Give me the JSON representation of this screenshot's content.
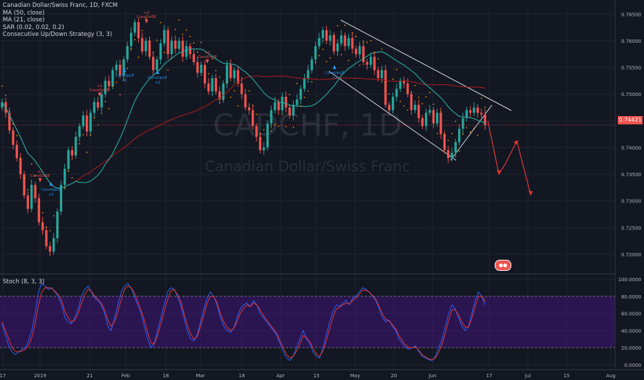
{
  "legend": {
    "symbol": "Canadian Dollar/Swiss Franc, 1D, FXCM",
    "studies": [
      "MA (50, close)",
      "MA (21, close)",
      "SAR (0.02, 0.02, 0.2)",
      "Consecutive Up/Down Strategy (3, 3)"
    ]
  },
  "watermark": {
    "ticker": "CADCHF, 1D",
    "name": "Canadian Dollar/Swiss Franc"
  },
  "current_price": "0.74421",
  "stoch_label": "Stoch (8, 3, 3)",
  "signals": {
    "long_label": "ConsUpLE",
    "short_label": "ConsDnSE",
    "qty": "+2"
  },
  "colors": {
    "background": "#131722",
    "up": "#26a69a",
    "down": "#ef5350",
    "ma50": "#b71c1c",
    "ma21": "#26a69a",
    "sar": "#ff9800",
    "stoch_k": "#2962ff",
    "stoch_d": "#e53935",
    "stoch_band": "#4a148c"
  },
  "chart_data": [
    {
      "type": "candlestick",
      "title": "Canadian Dollar/Swiss Franc, 1D, FXCM",
      "x_tick_labels": [
        "17",
        "2019",
        "21",
        "Feb",
        "18",
        "Mar",
        "18",
        "Apr",
        "15",
        "May",
        "20",
        "Jun",
        "17",
        "Jul",
        "15",
        "Aug"
      ],
      "y_tick_labels": [
        "0.76500",
        "0.76000",
        "0.75500",
        "0.75000",
        "0.74500",
        "0.74000",
        "0.73500",
        "0.73000",
        "0.72500",
        "0.72000"
      ],
      "ylim": [
        0.7165,
        0.7666
      ],
      "close": [
        0.7485,
        0.7465,
        0.7432,
        0.7405,
        0.738,
        0.735,
        0.731,
        0.7285,
        0.733,
        0.7305,
        0.726,
        0.7245,
        0.7215,
        0.7205,
        0.723,
        0.728,
        0.733,
        0.736,
        0.7395,
        0.7385,
        0.742,
        0.744,
        0.746,
        0.743,
        0.7465,
        0.7485,
        0.7475,
        0.75,
        0.7525,
        0.7515,
        0.7545,
        0.7555,
        0.7535,
        0.7565,
        0.759,
        0.7615,
        0.7635,
        0.7605,
        0.758,
        0.76,
        0.757,
        0.7545,
        0.7565,
        0.7595,
        0.762,
        0.7575,
        0.76,
        0.7585,
        0.76,
        0.757,
        0.759,
        0.7575,
        0.756,
        0.754,
        0.7555,
        0.752,
        0.7505,
        0.753,
        0.7505,
        0.749,
        0.752,
        0.7555,
        0.753,
        0.7545,
        0.752,
        0.75,
        0.7475,
        0.747,
        0.744,
        0.742,
        0.7395,
        0.74,
        0.7445,
        0.747,
        0.7485,
        0.747,
        0.7495,
        0.7475,
        0.746,
        0.748,
        0.749,
        0.751,
        0.753,
        0.7545,
        0.7565,
        0.759,
        0.7605,
        0.762,
        0.76,
        0.761,
        0.758,
        0.7595,
        0.761,
        0.759,
        0.7605,
        0.7585,
        0.7575,
        0.759,
        0.756,
        0.7555,
        0.757,
        0.7545,
        0.753,
        0.7545,
        0.748,
        0.747,
        0.7495,
        0.751,
        0.7525,
        0.752,
        0.75,
        0.747,
        0.748,
        0.7455,
        0.744,
        0.7465,
        0.747,
        0.7445,
        0.7465,
        0.7425,
        0.7395,
        0.738,
        0.739,
        0.741,
        0.7435,
        0.7455,
        0.747,
        0.7465,
        0.7475,
        0.7465,
        0.7462,
        0.7442
      ],
      "annotations": [
        "ConsUpLE",
        "ConsDnSE",
        "+2"
      ]
    },
    {
      "type": "line",
      "title": "Stoch (8, 3, 3)",
      "y_tick_labels": [
        "100.0000",
        "80.0000",
        "60.0000",
        "40.0000",
        "20.0000",
        "0.0000"
      ],
      "ylim": [
        0,
        100
      ],
      "band": [
        20,
        80
      ],
      "series": [
        {
          "values": [
            48,
            35,
            22,
            15,
            12,
            15,
            18,
            20,
            28,
            40,
            60,
            85,
            95,
            92,
            88,
            90,
            85,
            80,
            70,
            55,
            50,
            48,
            55,
            65,
            80,
            88,
            92,
            85,
            78,
            75,
            70,
            60,
            45,
            40,
            55,
            70,
            85,
            92,
            95,
            90,
            80,
            70,
            60,
            45,
            30,
            20,
            25,
            40,
            55,
            70,
            85,
            90,
            88,
            80,
            70,
            55,
            40,
            30,
            28,
            35,
            50,
            65,
            78,
            85,
            80,
            70,
            55,
            45,
            40,
            38,
            42,
            55,
            65,
            70,
            72,
            68,
            75,
            70,
            60,
            55,
            50,
            45,
            40,
            35,
            25,
            15,
            8,
            5,
            10,
            20,
            30,
            40,
            30,
            25,
            15,
            10,
            8,
            20,
            35,
            50,
            62,
            70,
            68,
            72,
            75,
            70,
            78,
            80,
            85,
            90,
            88,
            85,
            80,
            75,
            65,
            55,
            50,
            52,
            45,
            40,
            30,
            25,
            20,
            18,
            20,
            22,
            15,
            10,
            8,
            6,
            5,
            10,
            20,
            30,
            45,
            60,
            70,
            65,
            55,
            45,
            40,
            45,
            60,
            75,
            85,
            80,
            70
          ]
        },
        {
          "values": [
            50,
            40,
            30,
            20,
            16,
            15,
            16,
            18,
            22,
            32,
            48,
            70,
            85,
            90,
            90,
            89,
            86,
            82,
            75,
            62,
            55,
            50,
            52,
            60,
            72,
            82,
            88,
            86,
            80,
            76,
            72,
            64,
            52,
            45,
            50,
            62,
            76,
            88,
            92,
            90,
            84,
            74,
            64,
            52,
            38,
            26,
            24,
            34,
            48,
            62,
            76,
            86,
            88,
            82,
            74,
            60,
            46,
            36,
            30,
            33,
            45,
            58,
            72,
            80,
            80,
            72,
            60,
            50,
            44,
            40,
            42,
            50,
            60,
            66,
            70,
            68,
            72,
            70,
            64,
            58,
            52,
            47,
            42,
            37,
            28,
            20,
            12,
            8,
            10,
            16,
            24,
            34,
            32,
            27,
            19,
            13,
            10,
            16,
            28,
            42,
            55,
            65,
            67,
            70,
            72,
            71,
            75,
            78,
            82,
            87,
            87,
            85,
            81,
            76,
            68,
            59,
            53,
            51,
            47,
            42,
            34,
            28,
            23,
            20,
            20,
            21,
            17,
            12,
            9,
            7,
            6,
            8,
            15,
            24,
            37,
            52,
            64,
            64,
            58,
            50,
            44,
            44,
            54,
            68,
            80,
            80,
            74
          ]
        }
      ]
    }
  ]
}
